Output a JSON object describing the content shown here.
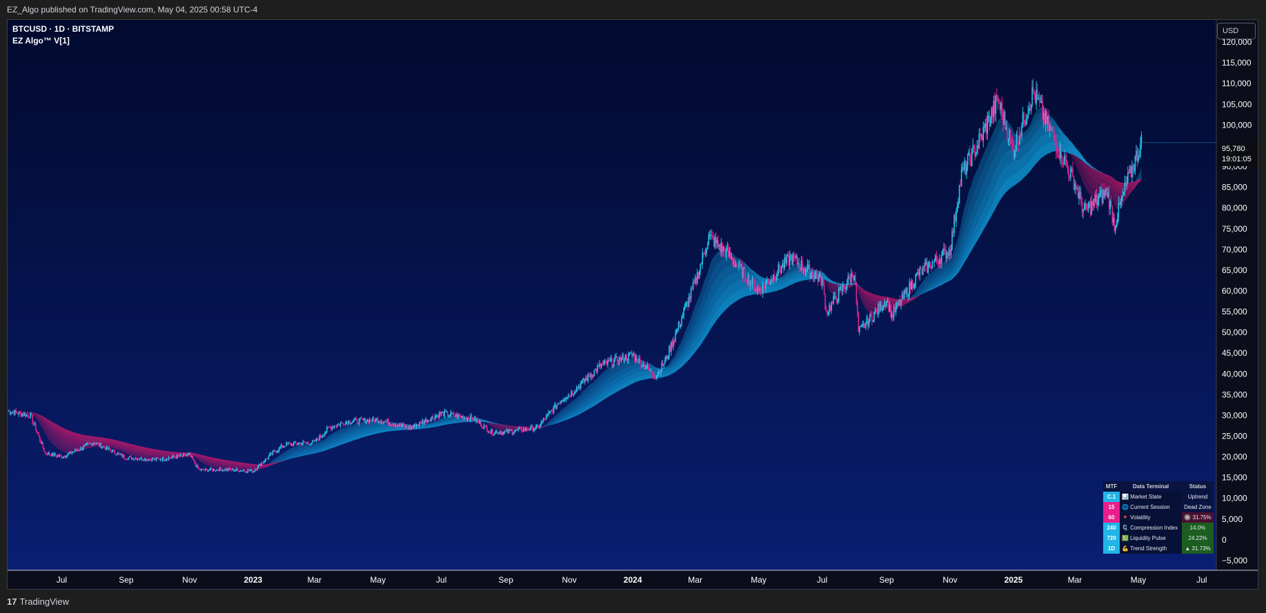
{
  "header": {
    "text": "EZ_Algo published on TradingView.com, May 04, 2025 00:58 UTC-4"
  },
  "legend": {
    "symbol": "BTCUSD · 1D · BITSTAMP",
    "indicator": "EZ Algo™ V[1]"
  },
  "currency_button": "USD",
  "last_price": {
    "price": "95,780",
    "countdown": "19:01:05"
  },
  "footer": {
    "logo_mark": "17",
    "brand": "TradingView"
  },
  "colors": {
    "bull": "#26c6ea",
    "bear": "#e91e8c",
    "band_bear": "#c2186b",
    "band_bull": "#0f9ad6",
    "background_top": "#020a2e",
    "background_bottom": "#0a1f75"
  },
  "chart_data": {
    "type": "line",
    "title": "",
    "xlabel": "",
    "ylabel": "",
    "ylim": [
      -5000,
      125000
    ],
    "yticks": [
      "120,000",
      "115,000",
      "110,000",
      "105,000",
      "100,000",
      "95,000",
      "90,000",
      "85,000",
      "80,000",
      "75,000",
      "70,000",
      "65,000",
      "60,000",
      "55,000",
      "50,000",
      "45,000",
      "40,000",
      "35,000",
      "30,000",
      "25,000",
      "20,000",
      "15,000",
      "10,000",
      "5,000",
      "0",
      "−5,000"
    ],
    "ytick_values": [
      120000,
      115000,
      110000,
      105000,
      100000,
      95000,
      90000,
      85000,
      80000,
      75000,
      70000,
      65000,
      60000,
      55000,
      50000,
      45000,
      40000,
      35000,
      30000,
      25000,
      20000,
      15000,
      10000,
      5000,
      0,
      -5000
    ],
    "xtick_labels": [
      "Jul",
      "Sep",
      "Nov",
      "2023",
      "Mar",
      "May",
      "Jul",
      "Sep",
      "Nov",
      "2024",
      "Mar",
      "May",
      "Jul",
      "Sep",
      "Nov",
      "2025",
      "Mar",
      "May",
      "Jul"
    ],
    "xtick_dates": [
      "2022-07-01",
      "2022-09-01",
      "2022-11-01",
      "2023-01-01",
      "2023-03-01",
      "2023-05-01",
      "2023-07-01",
      "2023-09-01",
      "2023-11-01",
      "2024-01-01",
      "2024-03-01",
      "2024-05-01",
      "2024-07-01",
      "2024-09-01",
      "2024-11-01",
      "2025-01-01",
      "2025-03-01",
      "2025-05-01",
      "2025-07-01"
    ],
    "x_range": [
      "2022-05-10",
      "2025-07-15"
    ],
    "series": [
      {
        "name": "",
        "x": [
          "2022-05-10",
          "2022-06-01",
          "2022-06-15",
          "2022-07-01",
          "2022-08-01",
          "2022-09-01",
          "2022-10-01",
          "2022-11-01",
          "2022-11-10",
          "2022-12-01",
          "2023-01-01",
          "2023-01-20",
          "2023-02-01",
          "2023-03-01",
          "2023-03-15",
          "2023-04-01",
          "2023-05-01",
          "2023-06-01",
          "2023-07-01",
          "2023-08-01",
          "2023-08-18",
          "2023-09-01",
          "2023-10-01",
          "2023-10-25",
          "2023-11-01",
          "2023-12-01",
          "2024-01-01",
          "2024-01-23",
          "2024-02-01",
          "2024-03-01",
          "2024-03-14",
          "2024-04-01",
          "2024-05-01",
          "2024-06-01",
          "2024-07-01",
          "2024-07-05",
          "2024-08-01",
          "2024-08-05",
          "2024-09-01",
          "2024-09-06",
          "2024-10-01",
          "2024-11-01",
          "2024-11-12",
          "2024-12-01",
          "2024-12-17",
          "2025-01-01",
          "2025-01-20",
          "2025-02-01",
          "2025-03-01",
          "2025-03-10",
          "2025-04-01",
          "2025-04-08",
          "2025-04-20",
          "2025-05-04"
        ],
        "values": [
          31000,
          30000,
          21000,
          20000,
          23500,
          19800,
          19400,
          20500,
          16800,
          17000,
          16600,
          21000,
          23000,
          23500,
          27000,
          28500,
          29000,
          27000,
          30500,
          29200,
          26000,
          26000,
          27000,
          34000,
          35000,
          42000,
          44500,
          39500,
          43000,
          62000,
          73000,
          69000,
          60000,
          68000,
          62500,
          55000,
          64500,
          50000,
          58000,
          54000,
          64000,
          70000,
          88000,
          97000,
          106000,
          94000,
          108000,
          101000,
          86000,
          79000,
          84000,
          76000,
          86000,
          95780
        ]
      }
    ],
    "table": {
      "headers": [
        "MTF",
        "Data Terminal",
        "Status"
      ],
      "rows": [
        {
          "mtf": "C.1",
          "label": "📊 Market State",
          "status": "Uptrend"
        },
        {
          "mtf": "15",
          "label": "🌐 Current Session",
          "status": "Dead Zone"
        },
        {
          "mtf": "60",
          "label": "🔻 Volatility",
          "status": "🔘 31.75%"
        },
        {
          "mtf": "240",
          "label": "🗜️ Compression Index",
          "status": "14.0%"
        },
        {
          "mtf": "720",
          "label": "💹 Liquidity Pulse",
          "status": "24.22%"
        },
        {
          "mtf": "1D",
          "label": "💪 Trend Strength",
          "status": "▲ 31.73%"
        }
      ],
      "mtf_colors": [
        "#1fb5e6",
        "#e91e8c",
        "#e91e8c",
        "#1fb5e6",
        "#1fb5e6",
        "#1fb5e6"
      ],
      "status_colors": [
        "#0a1440",
        "#0a1440",
        "#4a1030",
        "#1b5e20",
        "#1b5e20",
        "#1b5e20"
      ]
    }
  }
}
